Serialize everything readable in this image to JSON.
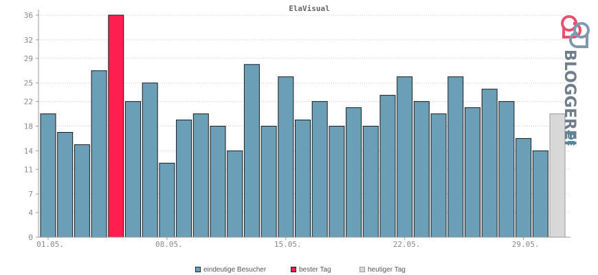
{
  "colors": {
    "bar": "#6a9fb7",
    "best": "#ff1f4f",
    "today": "#d8d8d8",
    "bar_stroke": "#1a1a1a",
    "today_stroke": "#999999",
    "grid": "#c8c8c8",
    "axis": "#999999"
  },
  "chart_data": {
    "type": "bar",
    "title": "ElaVisual",
    "xlabel": "",
    "ylabel": "",
    "ylim": [
      0,
      36
    ],
    "grid": true,
    "legend_position": "bottom",
    "y_ticks": [
      "0",
      "4",
      "7",
      "11",
      "14",
      "18",
      "22",
      "25",
      "29",
      "32",
      "36"
    ],
    "x_tick_labels": [
      {
        "index": 0,
        "label": "01.05."
      },
      {
        "index": 7,
        "label": "08.05."
      },
      {
        "index": 14,
        "label": "15.05."
      },
      {
        "index": 21,
        "label": "22.05."
      },
      {
        "index": 28,
        "label": "29.05."
      }
    ],
    "values": [
      20,
      17,
      15,
      27,
      36,
      22,
      25,
      12,
      19,
      20,
      18,
      14,
      28,
      18,
      26,
      19,
      22,
      18,
      21,
      18,
      23,
      26,
      22,
      20,
      26,
      21,
      24,
      22,
      16,
      14,
      20
    ],
    "kinds": [
      "visitors",
      "visitors",
      "visitors",
      "visitors",
      "best",
      "visitors",
      "visitors",
      "visitors",
      "visitors",
      "visitors",
      "visitors",
      "visitors",
      "visitors",
      "visitors",
      "visitors",
      "visitors",
      "visitors",
      "visitors",
      "visitors",
      "visitors",
      "visitors",
      "visitors",
      "visitors",
      "visitors",
      "visitors",
      "visitors",
      "visitors",
      "visitors",
      "visitors",
      "visitors",
      "today"
    ],
    "legend": [
      {
        "key": "visitors",
        "label": "eindeutige Besucher"
      },
      {
        "key": "best",
        "label": "bester Tag"
      },
      {
        "key": "today",
        "label": "heutiger Tag"
      }
    ]
  },
  "logo": {
    "text": "BLOGGEREI",
    "suffix": ".DE"
  }
}
